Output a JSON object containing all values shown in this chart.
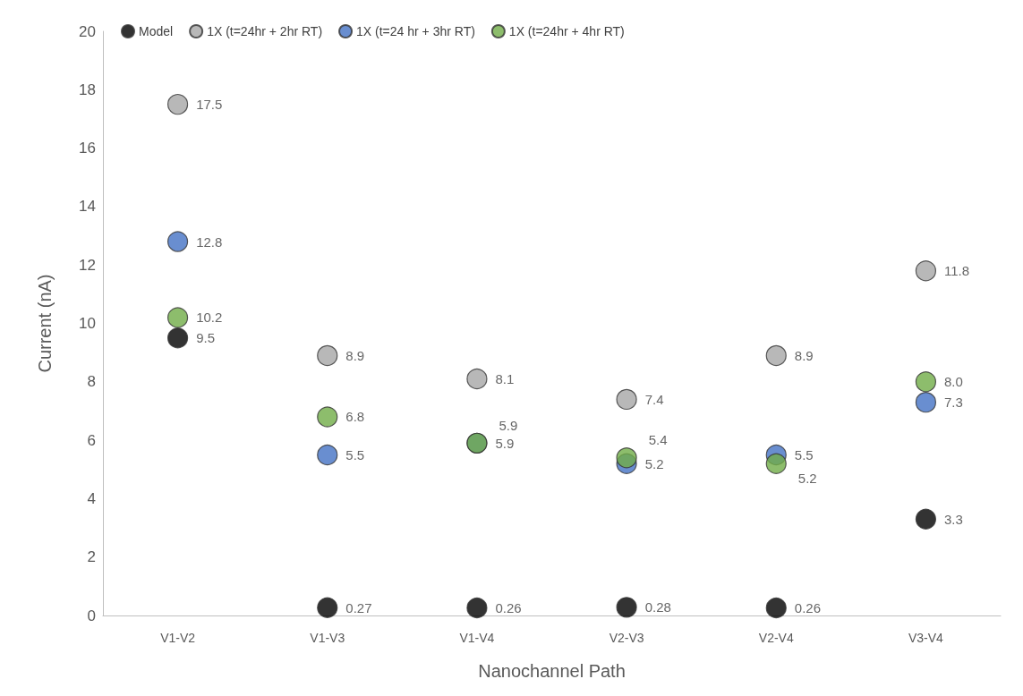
{
  "chart_data": {
    "type": "scatter",
    "xlabel": "Nanochannel Path",
    "ylabel": "Current (nA)",
    "categories": [
      "V1-V2",
      "V1-V3",
      "V1-V4",
      "V2-V3",
      "V2-V4",
      "V3-V4"
    ],
    "series": [
      {
        "name": "Model",
        "color": "#000000",
        "values": [
          9.5,
          0.27,
          0.26,
          0.28,
          0.26,
          3.3
        ],
        "value_labels": [
          "9.5",
          "0.27",
          "0.26",
          "0.28",
          "0.26",
          "3.3"
        ]
      },
      {
        "name": "1X (t=24hr + 2hr RT)",
        "color": "#a6a6a6",
        "values": [
          17.5,
          8.9,
          8.1,
          7.4,
          8.9,
          11.8
        ],
        "value_labels": [
          "17.5",
          "8.9",
          "8.1",
          "7.4",
          "8.9",
          "11.8"
        ]
      },
      {
        "name": "1X (t=24 hr + 3hr RT)",
        "color": "#4472c4",
        "values": [
          12.8,
          5.5,
          5.9,
          5.2,
          5.5,
          7.3
        ],
        "value_labels": [
          "12.8",
          "5.5",
          "5.9",
          "5.2",
          "5.5",
          "7.3"
        ]
      },
      {
        "name": "1X (t=24hr + 4hr RT)",
        "color": "#70ad47",
        "values": [
          10.2,
          6.8,
          5.9,
          5.4,
          5.2,
          8.0
        ],
        "value_labels": [
          "10.2",
          "6.8",
          "5.9",
          "5.4",
          "5.2",
          "8.0"
        ]
      }
    ],
    "ylim": [
      0,
      20
    ],
    "yticks": [
      0,
      2,
      4,
      6,
      8,
      10,
      12,
      14,
      16,
      18,
      20
    ],
    "grid": false,
    "legend": "top",
    "marker": "circle"
  }
}
